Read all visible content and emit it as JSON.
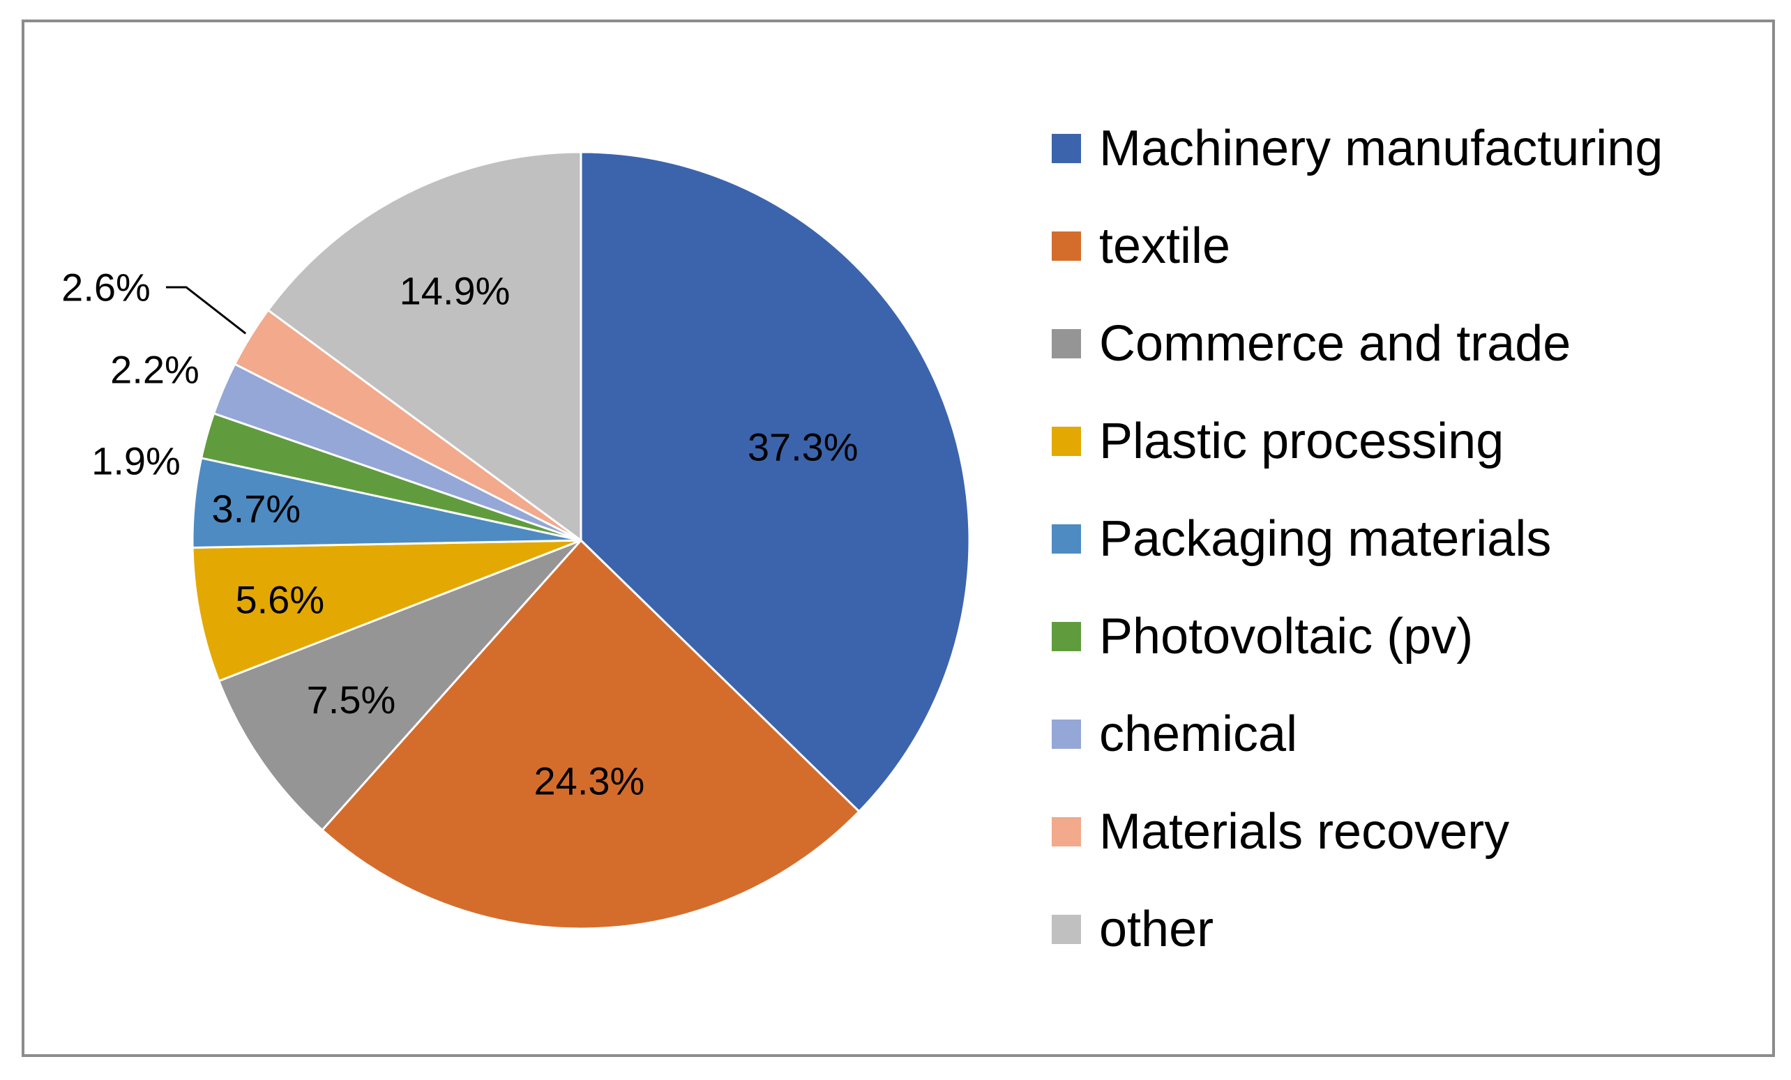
{
  "chart_data": {
    "type": "pie",
    "title": "",
    "slices": [
      {
        "label": "Machinery manufacturing",
        "value": 37.3,
        "display": "37.3%",
        "color": "#3C64AD"
      },
      {
        "label": "textile",
        "value": 24.3,
        "display": "24.3%",
        "color": "#D46D2C"
      },
      {
        "label": "Commerce and trade",
        "value": 7.5,
        "display": "7.5%",
        "color": "#959595"
      },
      {
        "label": "Plastic processing",
        "value": 5.6,
        "display": "5.6%",
        "color": "#E3A902"
      },
      {
        "label": "Packaging materials",
        "value": 3.7,
        "display": "3.7%",
        "color": "#4E8BC3"
      },
      {
        "label": "Photovoltaic (pv)",
        "value": 1.9,
        "display": "1.9%",
        "color": "#609C3D"
      },
      {
        "label": "chemical",
        "value": 2.2,
        "display": "2.2%",
        "color": "#94A7D7"
      },
      {
        "label": "Materials recovery",
        "value": 2.6,
        "display": "2.6%",
        "color": "#F2A98C"
      },
      {
        "label": "other",
        "value": 14.9,
        "display": "14.9%",
        "color": "#C0C0C0"
      }
    ],
    "start_angle": "12 o'clock",
    "direction": "clockwise",
    "legend_position": "right",
    "label_position": "inside / outside for small slices"
  },
  "frame_color": "#8C8C8C"
}
